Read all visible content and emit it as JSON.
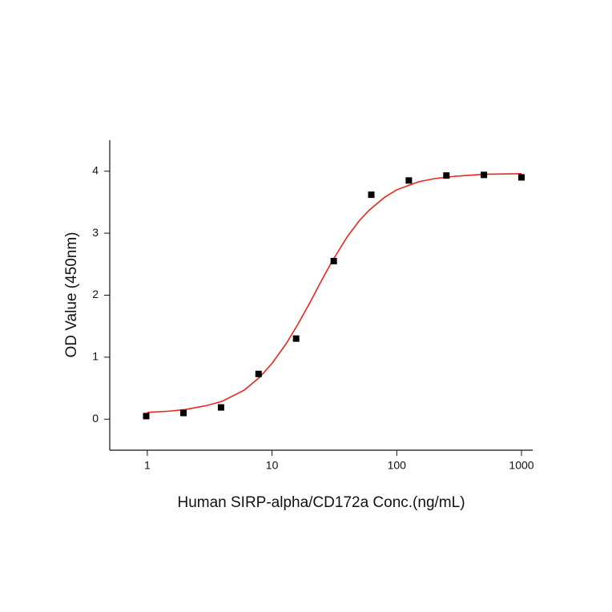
{
  "chart_data": {
    "type": "scatter",
    "x_label": "Human SIRP-alpha/CD172a Conc.(ng/mL)",
    "y_label": "OD Value (450nm)",
    "log_x": true,
    "xlim": [
      0.5,
      1230
    ],
    "xticks": [
      1,
      10,
      100,
      1000
    ],
    "ylim": [
      -0.5,
      4.5
    ],
    "yticks": [
      0,
      1,
      2,
      3,
      4
    ],
    "series": [
      {
        "type": "scatter",
        "color": "#000000",
        "x": [
          0.98,
          1.95,
          3.9,
          7.8,
          15.6,
          31.25,
          62.5,
          125,
          250,
          500,
          1000
        ],
        "values": [
          0.05,
          0.1,
          0.19,
          0.73,
          1.3,
          2.55,
          3.62,
          3.85,
          3.93,
          3.94,
          3.9
        ]
      },
      {
        "type": "line",
        "color": "#e8271f",
        "x": [
          1,
          1.5,
          2,
          3,
          4,
          6,
          8,
          10,
          13,
          16,
          20,
          25,
          30,
          40,
          50,
          60,
          80,
          100,
          150,
          200,
          300,
          500,
          1000
        ],
        "values": [
          0.11,
          0.13,
          0.155,
          0.22,
          0.29,
          0.47,
          0.68,
          0.9,
          1.22,
          1.52,
          1.87,
          2.24,
          2.53,
          2.94,
          3.2,
          3.37,
          3.58,
          3.7,
          3.83,
          3.88,
          3.92,
          3.95,
          3.96
        ]
      }
    ]
  }
}
